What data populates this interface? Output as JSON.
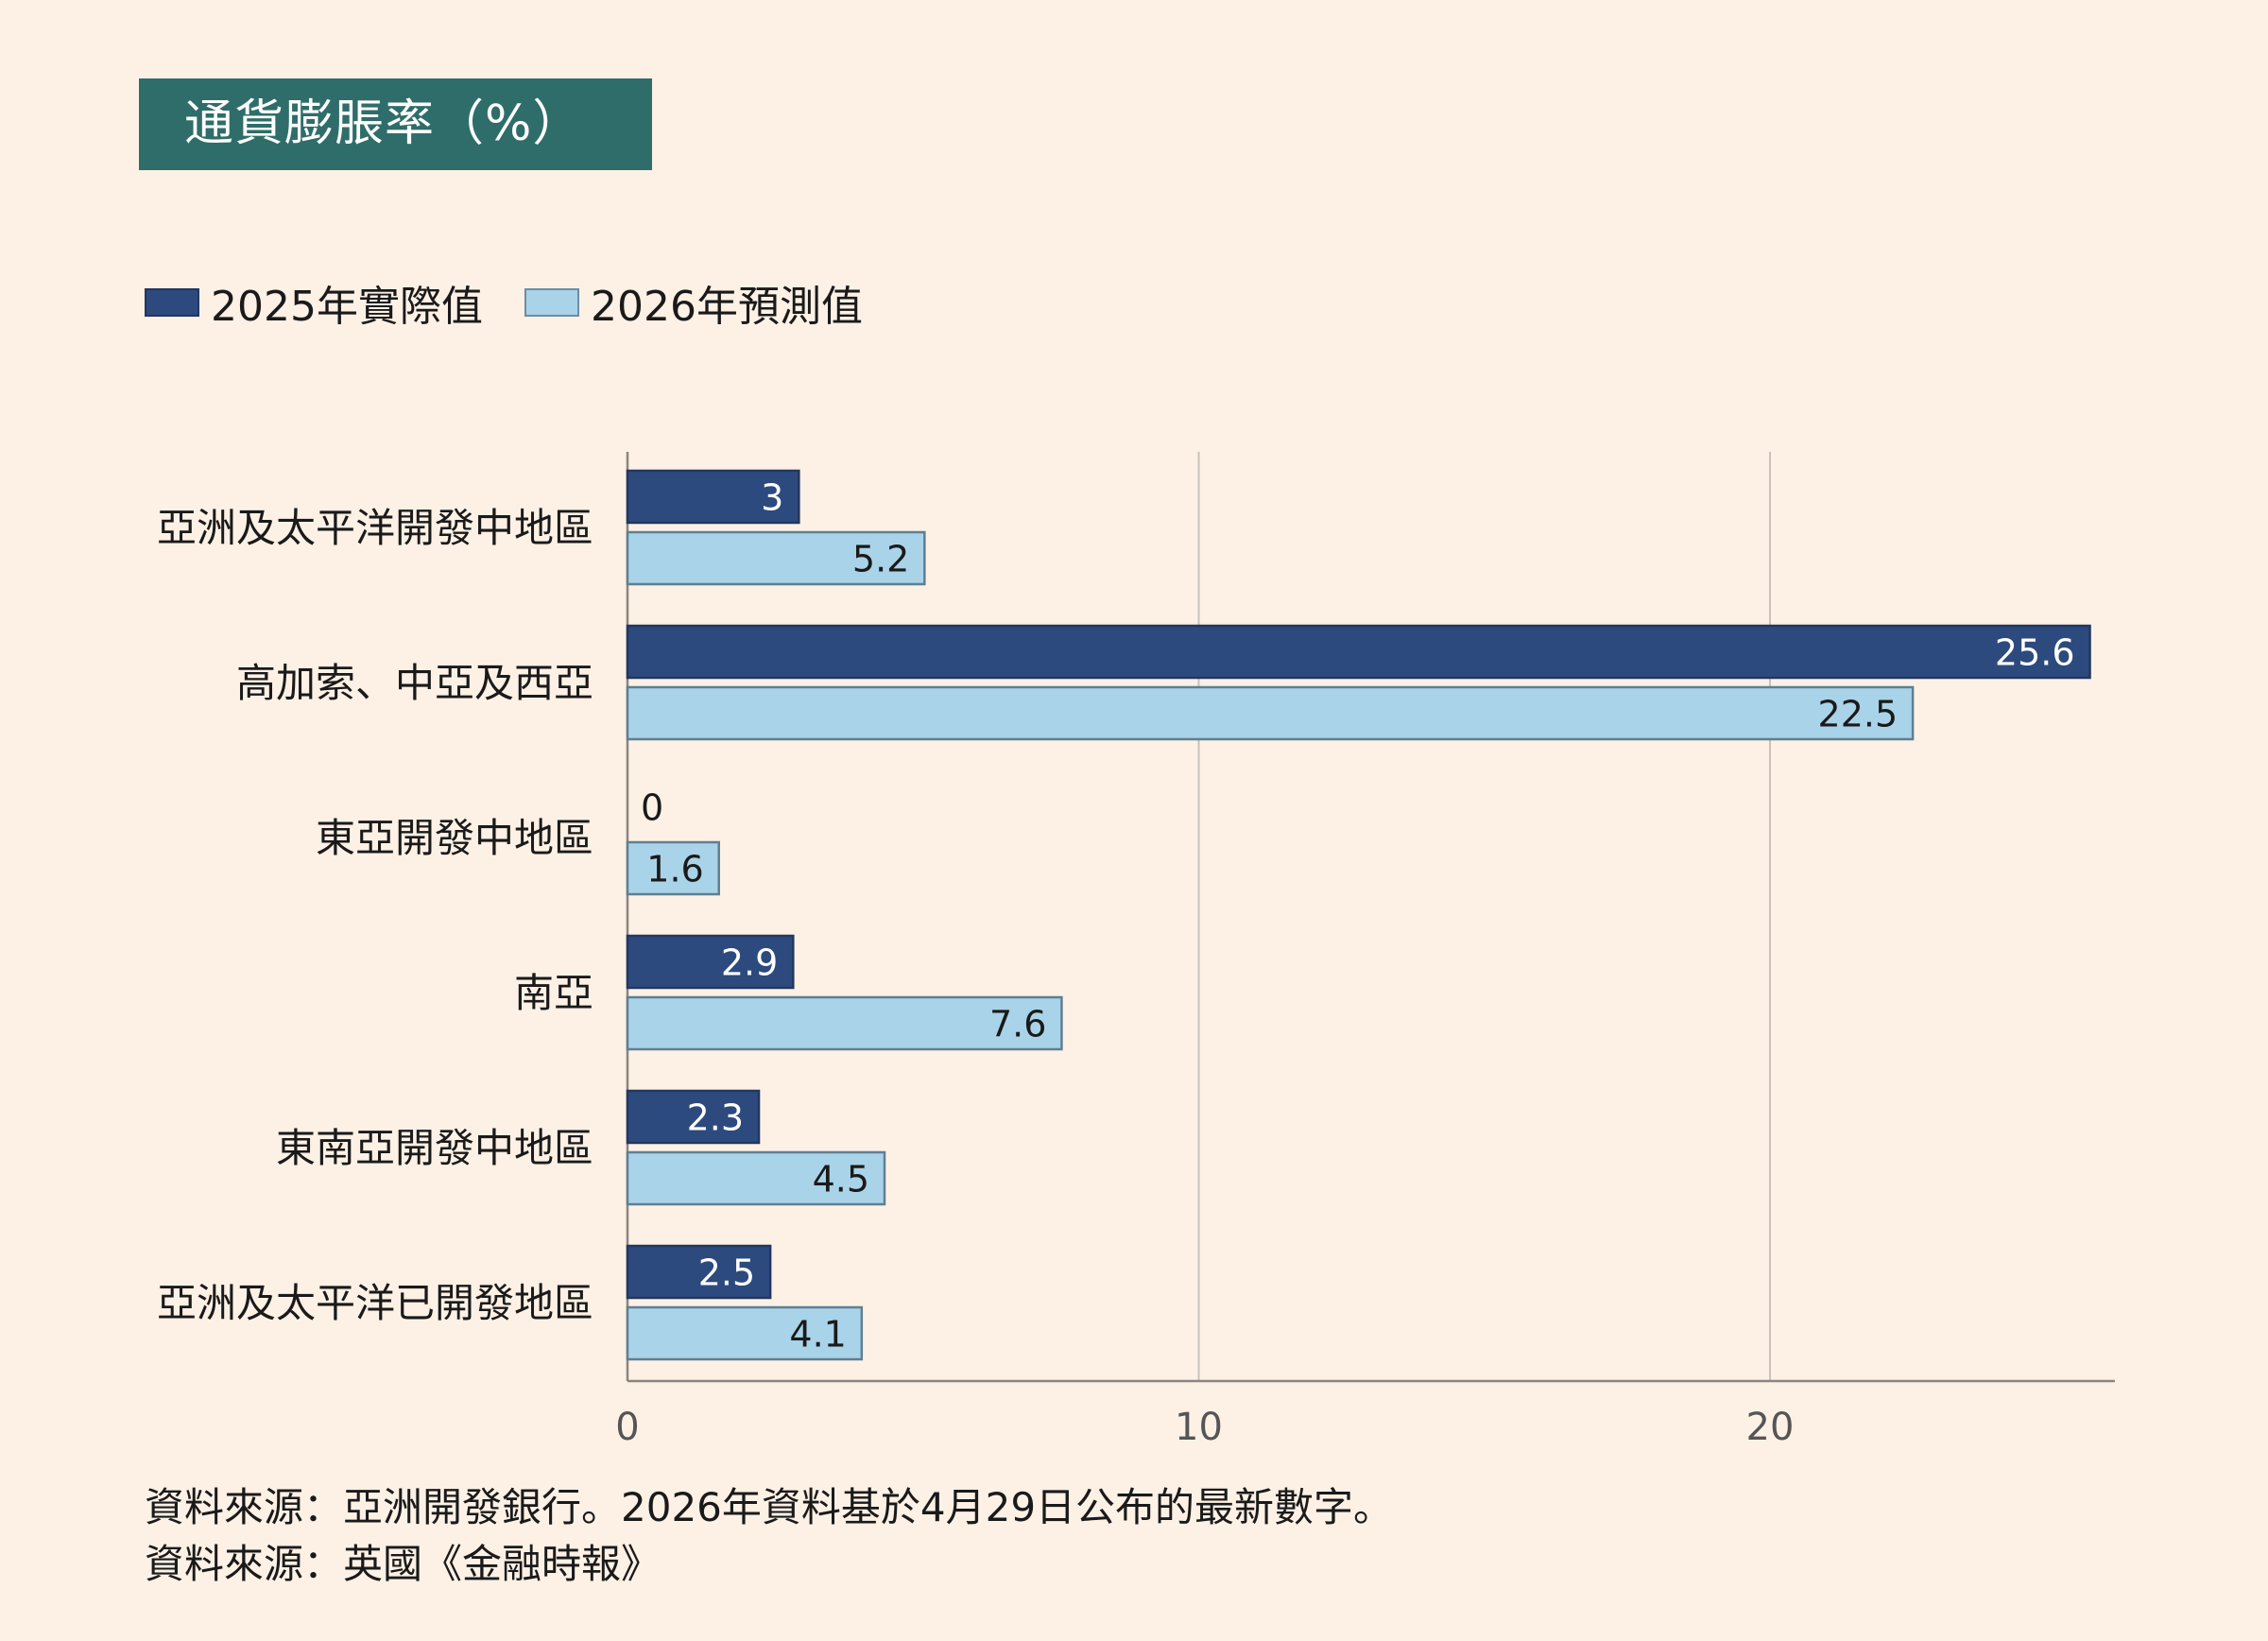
{
  "title": "通貨膨脹率（%）",
  "legend": {
    "actual": "2025年實際值",
    "forecast": "2026年預測值"
  },
  "colors": {
    "background": "#fdf1e6",
    "title_bg": "#2f6d6a",
    "actual": "#2c4a7e",
    "forecast": "#a9d3e8"
  },
  "chart_data": {
    "type": "bar",
    "orientation": "horizontal",
    "categories": [
      "亞洲及太平洋開發中地區",
      "高加索、中亞及西亞",
      "東亞開發中地區",
      "南亞",
      "東南亞開發中地區",
      "亞洲及太平洋已開發地區"
    ],
    "series": [
      {
        "name": "2025年實際值",
        "values": [
          3,
          25.6,
          0,
          2.9,
          2.3,
          2.5
        ]
      },
      {
        "name": "2026年預測值",
        "values": [
          5.2,
          22.5,
          1.6,
          7.6,
          4.5,
          4.1
        ]
      }
    ],
    "value_labels": [
      [
        "3",
        "25.6",
        "0",
        "2.9",
        "2.3",
        "2.5"
      ],
      [
        "5.2",
        "22.5",
        "1.6",
        "7.6",
        "4.5",
        "4.1"
      ]
    ],
    "x_ticks": [
      0,
      10,
      20
    ],
    "x_tick_labels": [
      "0",
      "10",
      "20"
    ],
    "xlim": [
      0,
      26
    ],
    "grid": "vertical",
    "legend_position": "top-left"
  },
  "sources": [
    "資料來源：亞洲開發銀行。2026年資料基於4月29日公布的最新數字。",
    "資料來源：英國《金融時報》"
  ]
}
